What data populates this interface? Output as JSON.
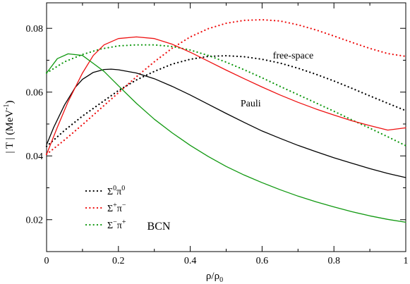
{
  "chart_data": {
    "type": "line",
    "xlabel": {
      "main": "ρ/ρ",
      "sub": "0"
    },
    "ylabel": {
      "main": "| T | (MeV",
      "sup": "-1",
      "end": ")"
    },
    "xlim": [
      0,
      1
    ],
    "ylim": [
      0.01,
      0.088
    ],
    "x_ticks": [
      0,
      0.2,
      0.4,
      0.6,
      0.8,
      1
    ],
    "x_tick_labels": [
      "0",
      "0.2",
      "0.4",
      "0.6",
      "0.8",
      "1"
    ],
    "y_ticks": [
      0.02,
      0.04,
      0.06,
      0.08
    ],
    "y_tick_labels": [
      "0.02",
      "0.04",
      "0.06",
      "0.08"
    ],
    "annotations": [
      {
        "text": "free-space",
        "at": [
          0.63,
          0.0705
        ]
      },
      {
        "text": "Pauli",
        "at": [
          0.54,
          0.0555
        ]
      },
      {
        "text": "BCN",
        "at": [
          0.28,
          0.0168
        ]
      }
    ],
    "legend": {
      "position": "bottom-left",
      "entries": [
        {
          "label": {
            "a": "Σ",
            "a_sup": "0",
            "b": "π",
            "b_sup": "0"
          },
          "color": "#000000",
          "style": "dotted"
        },
        {
          "label": {
            "a": "Σ",
            "a_sup": "+",
            "b": "π",
            "b_sup": "−"
          },
          "color": "#ee1111",
          "style": "dotted"
        },
        {
          "label": {
            "a": "Σ",
            "a_sup": "−",
            "b": "π",
            "b_sup": "+"
          },
          "color": "#119911",
          "style": "dotted"
        }
      ]
    },
    "series": [
      {
        "color": "#000000",
        "style": "dotted",
        "x": [
          0,
          0.05,
          0.1,
          0.15,
          0.2,
          0.25,
          0.3,
          0.35,
          0.4,
          0.45,
          0.5,
          0.55,
          0.6,
          0.65,
          0.7,
          0.75,
          0.8,
          0.85,
          0.9,
          0.95,
          1.0
        ],
        "y": [
          0.043,
          0.048,
          0.0525,
          0.0565,
          0.0605,
          0.0638,
          0.0665,
          0.0688,
          0.0703,
          0.0712,
          0.0714,
          0.0711,
          0.0703,
          0.0691,
          0.0675,
          0.0656,
          0.0635,
          0.0612,
          0.0588,
          0.0565,
          0.0542
        ]
      },
      {
        "color": "#ee1111",
        "style": "dotted",
        "x": [
          0,
          0.05,
          0.1,
          0.15,
          0.2,
          0.25,
          0.3,
          0.35,
          0.4,
          0.45,
          0.5,
          0.55,
          0.6,
          0.65,
          0.7,
          0.75,
          0.8,
          0.85,
          0.9,
          0.95,
          1.0
        ],
        "y": [
          0.0405,
          0.045,
          0.0498,
          0.0548,
          0.0598,
          0.0648,
          0.0695,
          0.0738,
          0.0773,
          0.0799,
          0.0816,
          0.0825,
          0.0827,
          0.0823,
          0.0811,
          0.0795,
          0.0776,
          0.0756,
          0.0737,
          0.0721,
          0.0712
        ]
      },
      {
        "color": "#119911",
        "style": "dotted",
        "x": [
          0,
          0.05,
          0.1,
          0.15,
          0.2,
          0.25,
          0.3,
          0.35,
          0.4,
          0.45,
          0.5,
          0.55,
          0.6,
          0.65,
          0.7,
          0.75,
          0.8,
          0.85,
          0.9,
          0.95,
          1.0
        ],
        "y": [
          0.066,
          0.0695,
          0.0718,
          0.0735,
          0.0745,
          0.0748,
          0.0748,
          0.0743,
          0.0732,
          0.0715,
          0.0694,
          0.067,
          0.0645,
          0.0618,
          0.0592,
          0.0566,
          0.054,
          0.0513,
          0.0487,
          0.046,
          0.0432
        ]
      },
      {
        "color": "#000000",
        "style": "solid",
        "x": [
          0,
          0.02,
          0.05,
          0.08,
          0.1,
          0.13,
          0.16,
          0.18,
          0.2,
          0.25,
          0.3,
          0.35,
          0.4,
          0.45,
          0.5,
          0.55,
          0.6,
          0.65,
          0.7,
          0.75,
          0.8,
          0.85,
          0.9,
          0.95,
          1.0
        ],
        "y": [
          0.0435,
          0.049,
          0.056,
          0.0615,
          0.064,
          0.0662,
          0.0671,
          0.0672,
          0.067,
          0.066,
          0.0642,
          0.0618,
          0.0591,
          0.0562,
          0.0533,
          0.0505,
          0.0478,
          0.0455,
          0.0433,
          0.0413,
          0.0394,
          0.0377,
          0.036,
          0.0345,
          0.0332
        ]
      },
      {
        "color": "#ee1111",
        "style": "solid",
        "x": [
          0,
          0.03,
          0.06,
          0.1,
          0.13,
          0.16,
          0.2,
          0.25,
          0.3,
          0.35,
          0.4,
          0.45,
          0.5,
          0.55,
          0.6,
          0.65,
          0.7,
          0.75,
          0.8,
          0.85,
          0.9,
          0.95,
          1.0
        ],
        "y": [
          0.0405,
          0.049,
          0.057,
          0.066,
          0.0715,
          0.0748,
          0.0768,
          0.0773,
          0.0768,
          0.075,
          0.0725,
          0.0697,
          0.0669,
          0.0642,
          0.0616,
          0.0591,
          0.0568,
          0.0547,
          0.0528,
          0.051,
          0.0495,
          0.0481,
          0.0488
        ]
      },
      {
        "color": "#119911",
        "style": "solid",
        "x": [
          0,
          0.03,
          0.06,
          0.1,
          0.13,
          0.16,
          0.2,
          0.25,
          0.3,
          0.35,
          0.4,
          0.45,
          0.5,
          0.55,
          0.6,
          0.65,
          0.7,
          0.75,
          0.8,
          0.85,
          0.9,
          0.95,
          1.0
        ],
        "y": [
          0.066,
          0.0705,
          0.072,
          0.0715,
          0.069,
          0.0665,
          0.062,
          0.0565,
          0.0515,
          0.0472,
          0.0433,
          0.0398,
          0.0367,
          0.034,
          0.0316,
          0.0294,
          0.0274,
          0.0256,
          0.024,
          0.0225,
          0.0212,
          0.0201,
          0.0192
        ]
      }
    ]
  }
}
